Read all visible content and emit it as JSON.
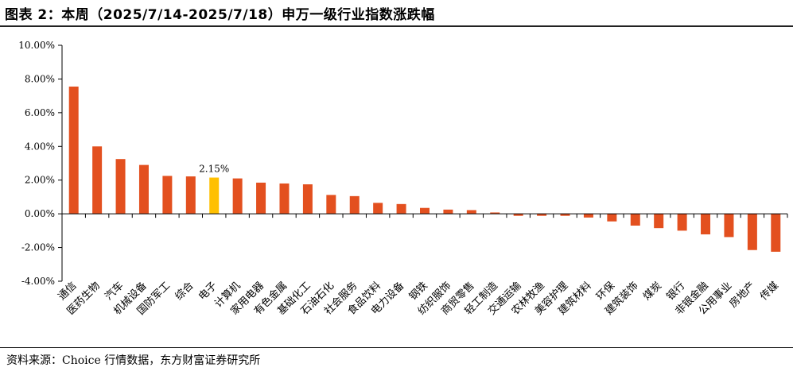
{
  "title": "图表 2：本周（2025/7/14-2025/7/18）申万一级行业指数涨跌幅",
  "source": "资料来源：Choice 行情数据，东方财富证券研究所",
  "colors": {
    "bar": "#E3501F",
    "highlight": "#FFC000",
    "axis": "#000000"
  },
  "chart_data": {
    "type": "bar",
    "categories": [
      "通信",
      "医药生物",
      "汽车",
      "机械设备",
      "国防军工",
      "综合",
      "电子",
      "计算机",
      "家用电器",
      "有色金属",
      "基础化工",
      "石油石化",
      "社会服务",
      "食品饮料",
      "电力设备",
      "钢铁",
      "纺织服饰",
      "商贸零售",
      "轻工制造",
      "交通运输",
      "农林牧渔",
      "美容护理",
      "建筑材料",
      "环保",
      "建筑装饰",
      "煤炭",
      "银行",
      "非银金融",
      "公用事业",
      "房地产",
      "传媒"
    ],
    "values": [
      7.55,
      4.0,
      3.25,
      2.9,
      2.25,
      2.22,
      2.15,
      2.1,
      1.85,
      1.8,
      1.75,
      1.12,
      1.05,
      0.65,
      0.58,
      0.35,
      0.25,
      0.22,
      0.08,
      -0.12,
      -0.12,
      -0.12,
      -0.22,
      -0.45,
      -0.7,
      -0.85,
      -1.0,
      -1.22,
      -1.38,
      -2.15,
      -2.25
    ],
    "highlight_index": 6,
    "data_labels": [
      {
        "index": 6,
        "text": "2.15%"
      }
    ],
    "y_ticks": [
      "10.00%",
      "8.00%",
      "6.00%",
      "4.00%",
      "2.00%",
      "0.00%",
      "-2.00%",
      "-4.00%"
    ],
    "ylim": [
      -4,
      10
    ],
    "xlabel": "",
    "ylabel": "",
    "grid": false,
    "legend": "none"
  }
}
